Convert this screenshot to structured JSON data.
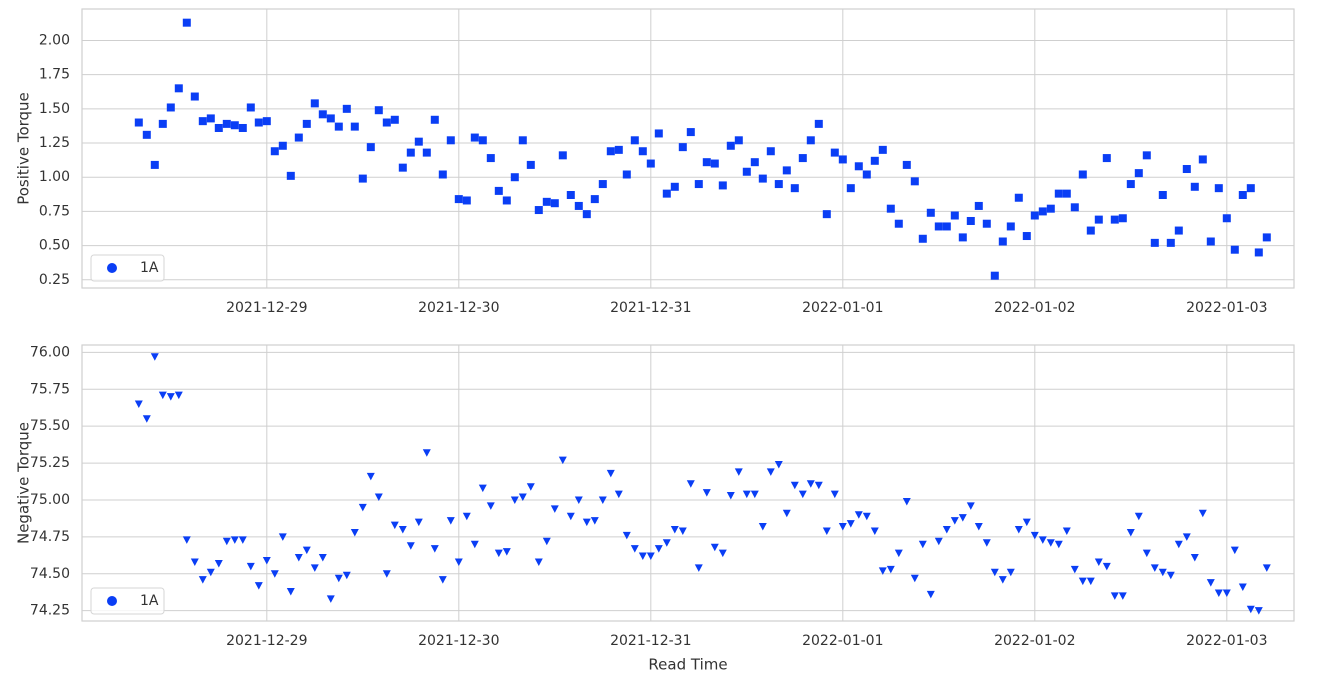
{
  "chart_data": [
    {
      "type": "scatter",
      "ylabel": "Positive Torque",
      "legend": "lower left",
      "grid": true,
      "marker": "square",
      "xlim": [
        "2021-12-28 00:54",
        "2022-01-03 08:24"
      ],
      "xticks": [
        "2021-12-29",
        "2021-12-30",
        "2021-12-31",
        "2022-01-01",
        "2022-01-02",
        "2022-01-03"
      ],
      "ylim": [
        0.19,
        2.23
      ],
      "yticks": [
        0.25,
        {
          "value": 0.5,
          "label": "0.50"
        },
        0.75,
        {
          "value": 1,
          "label": "1.00"
        },
        1.25,
        {
          "value": 1.5,
          "label": "1.50"
        },
        1.75,
        {
          "value": 2,
          "label": "2.00"
        }
      ],
      "x": [
        "2021-12-28 08:00",
        "2021-12-28 09:00",
        "2021-12-28 10:00",
        "2021-12-28 11:00",
        "2021-12-28 12:00",
        "2021-12-28 13:00",
        "2021-12-28 14:00",
        "2021-12-28 15:00",
        "2021-12-28 16:00",
        "2021-12-28 17:00",
        "2021-12-28 18:00",
        "2021-12-28 19:00",
        "2021-12-28 20:00",
        "2021-12-28 21:00",
        "2021-12-28 22:00",
        "2021-12-28 23:00",
        "2021-12-29 00:00",
        "2021-12-29 01:00",
        "2021-12-29 02:00",
        "2021-12-29 03:00",
        "2021-12-29 04:00",
        "2021-12-29 05:00",
        "2021-12-29 06:00",
        "2021-12-29 07:00",
        "2021-12-29 08:00",
        "2021-12-29 09:00",
        "2021-12-29 10:00",
        "2021-12-29 11:00",
        "2021-12-29 12:00",
        "2021-12-29 13:00",
        "2021-12-29 14:00",
        "2021-12-29 15:00",
        "2021-12-29 16:00",
        "2021-12-29 17:00",
        "2021-12-29 18:00",
        "2021-12-29 19:00",
        "2021-12-29 20:00",
        "2021-12-29 21:00",
        "2021-12-29 22:00",
        "2021-12-29 23:00",
        "2021-12-30 00:00",
        "2021-12-30 01:00",
        "2021-12-30 02:00",
        "2021-12-30 03:00",
        "2021-12-30 04:00",
        "2021-12-30 05:00",
        "2021-12-30 06:00",
        "2021-12-30 07:00",
        "2021-12-30 08:00",
        "2021-12-30 09:00",
        "2021-12-30 10:00",
        "2021-12-30 11:00",
        "2021-12-30 12:00",
        "2021-12-30 13:00",
        "2021-12-30 14:00",
        "2021-12-30 15:00",
        "2021-12-30 16:00",
        "2021-12-30 17:00",
        "2021-12-30 18:00",
        "2021-12-30 19:00",
        "2021-12-30 20:00",
        "2021-12-30 21:00",
        "2021-12-30 22:00",
        "2021-12-30 23:00",
        "2021-12-31 00:00",
        "2021-12-31 01:00",
        "2021-12-31 02:00",
        "2021-12-31 03:00",
        "2021-12-31 04:00",
        "2021-12-31 05:00",
        "2021-12-31 06:00",
        "2021-12-31 07:00",
        "2021-12-31 08:00",
        "2021-12-31 09:00",
        "2021-12-31 10:00",
        "2021-12-31 11:00",
        "2021-12-31 12:00",
        "2021-12-31 13:00",
        "2021-12-31 14:00",
        "2021-12-31 15:00",
        "2021-12-31 16:00",
        "2021-12-31 17:00",
        "2021-12-31 18:00",
        "2021-12-31 19:00",
        "2021-12-31 20:00",
        "2021-12-31 21:00",
        "2021-12-31 22:00",
        "2021-12-31 23:00",
        "2022-01-01 00:00",
        "2022-01-01 01:00",
        "2022-01-01 02:00",
        "2022-01-01 03:00",
        "2022-01-01 04:00",
        "2022-01-01 05:00",
        "2022-01-01 06:00",
        "2022-01-01 07:00",
        "2022-01-01 08:00",
        "2022-01-01 09:00",
        "2022-01-01 10:00",
        "2022-01-01 11:00",
        "2022-01-01 12:00",
        "2022-01-01 13:00",
        "2022-01-01 14:00",
        "2022-01-01 15:00",
        "2022-01-01 16:00",
        "2022-01-01 17:00",
        "2022-01-01 18:00",
        "2022-01-01 19:00",
        "2022-01-01 20:00",
        "2022-01-01 21:00",
        "2022-01-01 22:00",
        "2022-01-01 23:00",
        "2022-01-02 00:00",
        "2022-01-02 01:00",
        "2022-01-02 02:00",
        "2022-01-02 03:00",
        "2022-01-02 04:00",
        "2022-01-02 05:00",
        "2022-01-02 06:00",
        "2022-01-02 07:00",
        "2022-01-02 08:00",
        "2022-01-02 09:00",
        "2022-01-02 10:00",
        "2022-01-02 11:00",
        "2022-01-02 12:00",
        "2022-01-02 13:00",
        "2022-01-02 14:00",
        "2022-01-02 15:00",
        "2022-01-02 16:00",
        "2022-01-02 17:00",
        "2022-01-02 18:00",
        "2022-01-02 19:00",
        "2022-01-02 20:00",
        "2022-01-02 21:00",
        "2022-01-02 22:00",
        "2022-01-02 23:00",
        "2022-01-03 00:00",
        "2022-01-03 01:00",
        "2022-01-03 02:00",
        "2022-01-03 03:00",
        "2022-01-03 04:00",
        "2022-01-03 05:00"
      ],
      "series": [
        {
          "name": "1A",
          "color": "#0a3ef5",
          "values": [
            1.4,
            1.31,
            1.09,
            1.39,
            1.51,
            1.65,
            2.13,
            1.59,
            1.41,
            1.43,
            1.36,
            1.39,
            1.38,
            1.36,
            1.51,
            1.4,
            1.41,
            1.19,
            1.23,
            1.01,
            1.29,
            1.39,
            1.54,
            1.46,
            1.43,
            1.37,
            1.5,
            1.37,
            0.99,
            1.22,
            1.49,
            1.4,
            1.42,
            1.07,
            1.18,
            1.26,
            1.18,
            1.42,
            1.02,
            1.27,
            0.84,
            0.83,
            1.29,
            1.27,
            1.14,
            0.9,
            0.83,
            1.0,
            1.27,
            1.09,
            0.76,
            0.82,
            0.81,
            1.16,
            0.87,
            0.79,
            0.73,
            0.84,
            0.95,
            1.19,
            1.2,
            1.02,
            1.27,
            1.19,
            1.1,
            1.32,
            0.88,
            0.93,
            1.22,
            1.33,
            0.95,
            1.11,
            1.1,
            0.94,
            1.23,
            1.27,
            1.04,
            1.11,
            0.99,
            1.19,
            0.95,
            1.05,
            0.92,
            1.14,
            1.27,
            1.39,
            0.73,
            1.18,
            1.13,
            0.92,
            1.08,
            1.02,
            1.12,
            1.2,
            0.77,
            0.66,
            1.09,
            0.97,
            0.55,
            0.74,
            0.64,
            0.64,
            0.72,
            0.56,
            0.68,
            0.79,
            0.66,
            0.28,
            0.53,
            0.64,
            0.85,
            0.57,
            0.72,
            0.75,
            0.77,
            0.88,
            0.88,
            0.78,
            1.02,
            0.61,
            0.69,
            1.14,
            0.69,
            0.7,
            0.95,
            1.03,
            1.16,
            0.52,
            0.87,
            0.52,
            0.61,
            1.06,
            0.93,
            1.13,
            0.53,
            0.92,
            0.7,
            0.47,
            0.87,
            0.92,
            0.45,
            0.56
          ]
        }
      ]
    },
    {
      "type": "scatter",
      "ylabel": "Negative Torque",
      "xlabel": "Read Time",
      "legend": "lower left",
      "grid": true,
      "marker": "triangle-down",
      "xlim": [
        "2021-12-28 00:54",
        "2022-01-03 08:24"
      ],
      "xticks": [
        "2021-12-29",
        "2021-12-30",
        "2021-12-31",
        "2022-01-01",
        "2022-01-02",
        "2022-01-03"
      ],
      "ylim": [
        74.18,
        76.05
      ],
      "yticks": [
        74.25,
        {
          "value": 74.5,
          "label": "74.50"
        },
        74.75,
        {
          "value": 75,
          "label": "75.00"
        },
        75.25,
        {
          "value": 75.5,
          "label": "75.50"
        },
        75.75,
        {
          "value": 76,
          "label": "76.00"
        }
      ],
      "x": [
        "2021-12-28 08:00",
        "2021-12-28 09:00",
        "2021-12-28 10:00",
        "2021-12-28 11:00",
        "2021-12-28 12:00",
        "2021-12-28 13:00",
        "2021-12-28 14:00",
        "2021-12-28 15:00",
        "2021-12-28 16:00",
        "2021-12-28 17:00",
        "2021-12-28 18:00",
        "2021-12-28 19:00",
        "2021-12-28 20:00",
        "2021-12-28 21:00",
        "2021-12-28 22:00",
        "2021-12-28 23:00",
        "2021-12-29 00:00",
        "2021-12-29 01:00",
        "2021-12-29 02:00",
        "2021-12-29 03:00",
        "2021-12-29 04:00",
        "2021-12-29 05:00",
        "2021-12-29 06:00",
        "2021-12-29 07:00",
        "2021-12-29 08:00",
        "2021-12-29 09:00",
        "2021-12-29 10:00",
        "2021-12-29 11:00",
        "2021-12-29 12:00",
        "2021-12-29 13:00",
        "2021-12-29 14:00",
        "2021-12-29 15:00",
        "2021-12-29 16:00",
        "2021-12-29 17:00",
        "2021-12-29 18:00",
        "2021-12-29 19:00",
        "2021-12-29 20:00",
        "2021-12-29 21:00",
        "2021-12-29 22:00",
        "2021-12-29 23:00",
        "2021-12-30 00:00",
        "2021-12-30 01:00",
        "2021-12-30 02:00",
        "2021-12-30 03:00",
        "2021-12-30 04:00",
        "2021-12-30 05:00",
        "2021-12-30 06:00",
        "2021-12-30 07:00",
        "2021-12-30 08:00",
        "2021-12-30 09:00",
        "2021-12-30 10:00",
        "2021-12-30 11:00",
        "2021-12-30 12:00",
        "2021-12-30 13:00",
        "2021-12-30 14:00",
        "2021-12-30 15:00",
        "2021-12-30 16:00",
        "2021-12-30 17:00",
        "2021-12-30 18:00",
        "2021-12-30 19:00",
        "2021-12-30 20:00",
        "2021-12-30 21:00",
        "2021-12-30 22:00",
        "2021-12-30 23:00",
        "2021-12-31 00:00",
        "2021-12-31 01:00",
        "2021-12-31 02:00",
        "2021-12-31 03:00",
        "2021-12-31 04:00",
        "2021-12-31 05:00",
        "2021-12-31 06:00",
        "2021-12-31 07:00",
        "2021-12-31 08:00",
        "2021-12-31 09:00",
        "2021-12-31 10:00",
        "2021-12-31 11:00",
        "2021-12-31 12:00",
        "2021-12-31 13:00",
        "2021-12-31 14:00",
        "2021-12-31 15:00",
        "2021-12-31 16:00",
        "2021-12-31 17:00",
        "2021-12-31 18:00",
        "2021-12-31 19:00",
        "2021-12-31 20:00",
        "2021-12-31 21:00",
        "2021-12-31 22:00",
        "2021-12-31 23:00",
        "2022-01-01 00:00",
        "2022-01-01 01:00",
        "2022-01-01 02:00",
        "2022-01-01 03:00",
        "2022-01-01 04:00",
        "2022-01-01 05:00",
        "2022-01-01 06:00",
        "2022-01-01 07:00",
        "2022-01-01 08:00",
        "2022-01-01 09:00",
        "2022-01-01 10:00",
        "2022-01-01 11:00",
        "2022-01-01 12:00",
        "2022-01-01 13:00",
        "2022-01-01 14:00",
        "2022-01-01 15:00",
        "2022-01-01 16:00",
        "2022-01-01 17:00",
        "2022-01-01 18:00",
        "2022-01-01 19:00",
        "2022-01-01 20:00",
        "2022-01-01 21:00",
        "2022-01-01 22:00",
        "2022-01-01 23:00",
        "2022-01-02 00:00",
        "2022-01-02 01:00",
        "2022-01-02 02:00",
        "2022-01-02 03:00",
        "2022-01-02 04:00",
        "2022-01-02 05:00",
        "2022-01-02 06:00",
        "2022-01-02 07:00",
        "2022-01-02 08:00",
        "2022-01-02 09:00",
        "2022-01-02 10:00",
        "2022-01-02 11:00",
        "2022-01-02 12:00",
        "2022-01-02 13:00",
        "2022-01-02 14:00",
        "2022-01-02 15:00",
        "2022-01-02 16:00",
        "2022-01-02 17:00",
        "2022-01-02 18:00",
        "2022-01-02 19:00",
        "2022-01-02 20:00",
        "2022-01-02 21:00",
        "2022-01-02 22:00",
        "2022-01-02 23:00",
        "2022-01-03 00:00",
        "2022-01-03 01:00",
        "2022-01-03 02:00",
        "2022-01-03 03:00",
        "2022-01-03 04:00",
        "2022-01-03 05:00"
      ],
      "series": [
        {
          "name": "1A",
          "color": "#0a3ef5",
          "values": [
            75.65,
            75.55,
            75.97,
            75.71,
            75.7,
            75.71,
            74.73,
            74.58,
            74.46,
            74.51,
            74.57,
            74.72,
            74.73,
            74.73,
            74.55,
            74.42,
            74.59,
            74.5,
            74.75,
            74.38,
            74.61,
            74.66,
            74.54,
            74.61,
            74.33,
            74.47,
            74.49,
            74.78,
            74.95,
            75.16,
            75.02,
            74.5,
            74.83,
            74.8,
            74.69,
            74.85,
            75.32,
            74.67,
            74.46,
            74.86,
            74.58,
            74.89,
            74.7,
            75.08,
            74.96,
            74.64,
            74.65,
            75.0,
            75.02,
            75.09,
            74.58,
            74.72,
            74.94,
            75.27,
            74.89,
            75.0,
            74.85,
            74.86,
            75.0,
            75.18,
            75.04,
            74.76,
            74.67,
            74.62,
            74.62,
            74.67,
            74.71,
            74.8,
            74.79,
            75.11,
            74.54,
            75.05,
            74.68,
            74.64,
            75.03,
            75.19,
            75.04,
            75.04,
            74.82,
            75.19,
            75.24,
            74.91,
            75.1,
            75.04,
            75.11,
            75.1,
            74.79,
            75.04,
            74.82,
            74.84,
            74.9,
            74.89,
            74.79,
            74.52,
            74.53,
            74.64,
            74.99,
            74.47,
            74.7,
            74.36,
            74.72,
            74.8,
            74.86,
            74.88,
            74.96,
            74.82,
            74.71,
            74.51,
            74.46,
            74.51,
            74.8,
            74.85,
            74.76,
            74.73,
            74.71,
            74.7,
            74.79,
            74.53,
            74.45,
            74.45,
            74.58,
            74.55,
            74.35,
            74.35,
            74.78,
            74.89,
            74.64,
            74.54,
            74.51,
            74.49,
            74.7,
            74.75,
            74.61,
            74.91,
            74.44,
            74.37,
            74.37,
            74.66,
            74.41,
            74.26,
            74.25,
            74.54
          ]
        }
      ]
    }
  ]
}
